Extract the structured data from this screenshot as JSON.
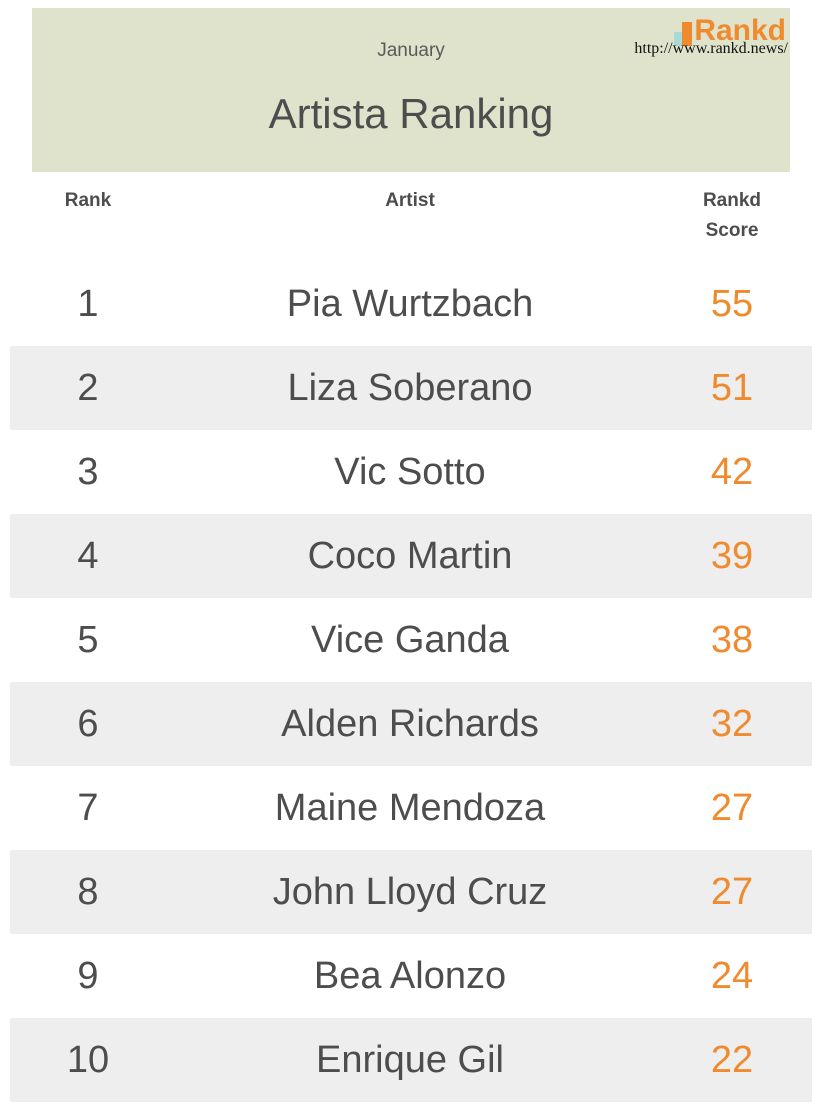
{
  "header": {
    "month": "January",
    "title": "Artista Ranking",
    "brand_name": "Rankd",
    "url": "http://www.rankd.news/"
  },
  "columns": {
    "rank": "Rank",
    "artist": "Artist",
    "score_line1": "Rankd",
    "score_line2": "Score"
  },
  "colors": {
    "header_band": "#e0e3cc",
    "score": "#f08a2e",
    "text": "#4d4d4d",
    "row_shade": "#eeeeee"
  },
  "chart_data": {
    "type": "table",
    "title": "Artista Ranking",
    "subtitle": "January",
    "columns": [
      "Rank",
      "Artist",
      "Rankd Score"
    ],
    "rows": [
      {
        "rank": "1",
        "artist": "Pia Wurtzbach",
        "score": "55"
      },
      {
        "rank": "2",
        "artist": "Liza Soberano",
        "score": "51"
      },
      {
        "rank": "3",
        "artist": "Vic Sotto",
        "score": "42"
      },
      {
        "rank": "4",
        "artist": "Coco Martin",
        "score": "39"
      },
      {
        "rank": "5",
        "artist": "Vice Ganda",
        "score": "38"
      },
      {
        "rank": "6",
        "artist": "Alden Richards",
        "score": "32"
      },
      {
        "rank": "7",
        "artist": "Maine Mendoza",
        "score": "27"
      },
      {
        "rank": "8",
        "artist": "John Lloyd Cruz",
        "score": "27"
      },
      {
        "rank": "9",
        "artist": "Bea Alonzo",
        "score": "24"
      },
      {
        "rank": "10",
        "artist": "Enrique Gil",
        "score": "22"
      }
    ]
  }
}
